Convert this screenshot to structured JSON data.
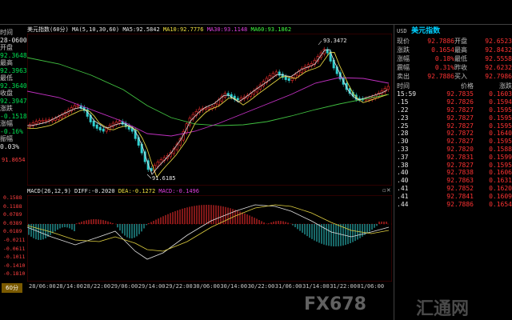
{
  "header": {
    "title": "美元指数(60分)",
    "ma_label": "MA(5,10,30,60)",
    "ma5": "MA5:92.5842",
    "ma10": "MA10:92.7776",
    "ma30": "MA30:93.1148",
    "ma60": "MA60:93.1862",
    "colors": {
      "ma5": "#e8e8e8",
      "ma10": "#f0e040",
      "ma30": "#e040e0",
      "ma60": "#40ff40"
    }
  },
  "macd_header": {
    "label": "MACD(26,12,9)",
    "diff": "DIFF:-0.2020",
    "dea": "DEA:-0.1272",
    "macd": "MACD:-0.1496"
  },
  "left_panel": {
    "time_label": "时间",
    "time_value": "28-0600",
    "open_label": "开盘",
    "open_value": "92.3648",
    "high_label": "最高",
    "high_value": "92.3963",
    "low_label": "最低",
    "low_value": "92.3640",
    "close_label": "收盘",
    "close_value": "92.3947",
    "chg_label": "涨跌",
    "chg_value": "-0.1518",
    "pct_label": "涨幅",
    "pct_value": "-0.16%",
    "amp_label": "振幅",
    "amp_value": "0.03%",
    "level_marker": "91.8654"
  },
  "price_annotations": {
    "high": "93.3472",
    "low": "91.6185"
  },
  "macd_axis": [
    "0.1588",
    "0.1188",
    "0.0789",
    "0.0389",
    "0.0189",
    "-0.0211",
    "-0.0611",
    "-0.1011",
    "-0.1410",
    "-0.1810"
  ],
  "x_axis": [
    "28/06:00",
    "28/14:00",
    "28/22:00",
    "29/06:00",
    "29/14:00",
    "29/22:00",
    "30/06:00",
    "30/14:00",
    "30/22:00",
    "31/06:00",
    "31/14:00",
    "31/22:00",
    "01/06:00"
  ],
  "tab_label": "60分",
  "right_panel": {
    "title_prefix": "USD",
    "title": "美元指数",
    "quote": [
      {
        "l": "现价",
        "v": "92.7886",
        "l2": "开盘",
        "v2": "92.6523"
      },
      {
        "l": "涨跌",
        "v": "0.1654",
        "l2": "最高",
        "v2": "92.8432"
      },
      {
        "l": "涨幅",
        "v": "0.18%",
        "l2": "最低",
        "v2": "92.5558"
      },
      {
        "l": "震幅",
        "v": "0.31%",
        "l2": "昨收",
        "v2": "92.6232"
      },
      {
        "l": "卖出",
        "v": "92.7886",
        "l2": "买入",
        "v2": "92.7986"
      }
    ],
    "col_headers": {
      "time": "时间",
      "price": "价格",
      "chg": "涨跌"
    },
    "ticks": [
      {
        "t": "15:59",
        "p": "92.7835",
        "c": "0.1603"
      },
      {
        "t": ".15",
        "p": "92.7826",
        "c": "0.1594"
      },
      {
        "t": ".22",
        "p": "92.7827",
        "c": "0.1595"
      },
      {
        "t": ".23",
        "p": "92.7827",
        "c": "0.1595"
      },
      {
        "t": ".25",
        "p": "92.7827",
        "c": "0.1595"
      },
      {
        "t": ".28",
        "p": "92.7872",
        "c": "0.1640"
      },
      {
        "t": ".30",
        "p": "92.7827",
        "c": "0.1595"
      },
      {
        "t": ".33",
        "p": "92.7820",
        "c": "0.1588"
      },
      {
        "t": ".37",
        "p": "92.7831",
        "c": "0.1599"
      },
      {
        "t": ".38",
        "p": "92.7827",
        "c": "0.1595"
      },
      {
        "t": ".40",
        "p": "92.7838",
        "c": "0.1606"
      },
      {
        "t": ".40",
        "p": "92.7863",
        "c": "0.1631"
      },
      {
        "t": ".41",
        "p": "92.7852",
        "c": "0.1620"
      },
      {
        "t": ".41",
        "p": "92.7841",
        "c": "0.1609"
      },
      {
        "t": ".44",
        "p": "92.7886",
        "c": "0.1654"
      }
    ]
  },
  "watermark": {
    "text1": "FX678",
    "text2": "汇通网"
  }
}
